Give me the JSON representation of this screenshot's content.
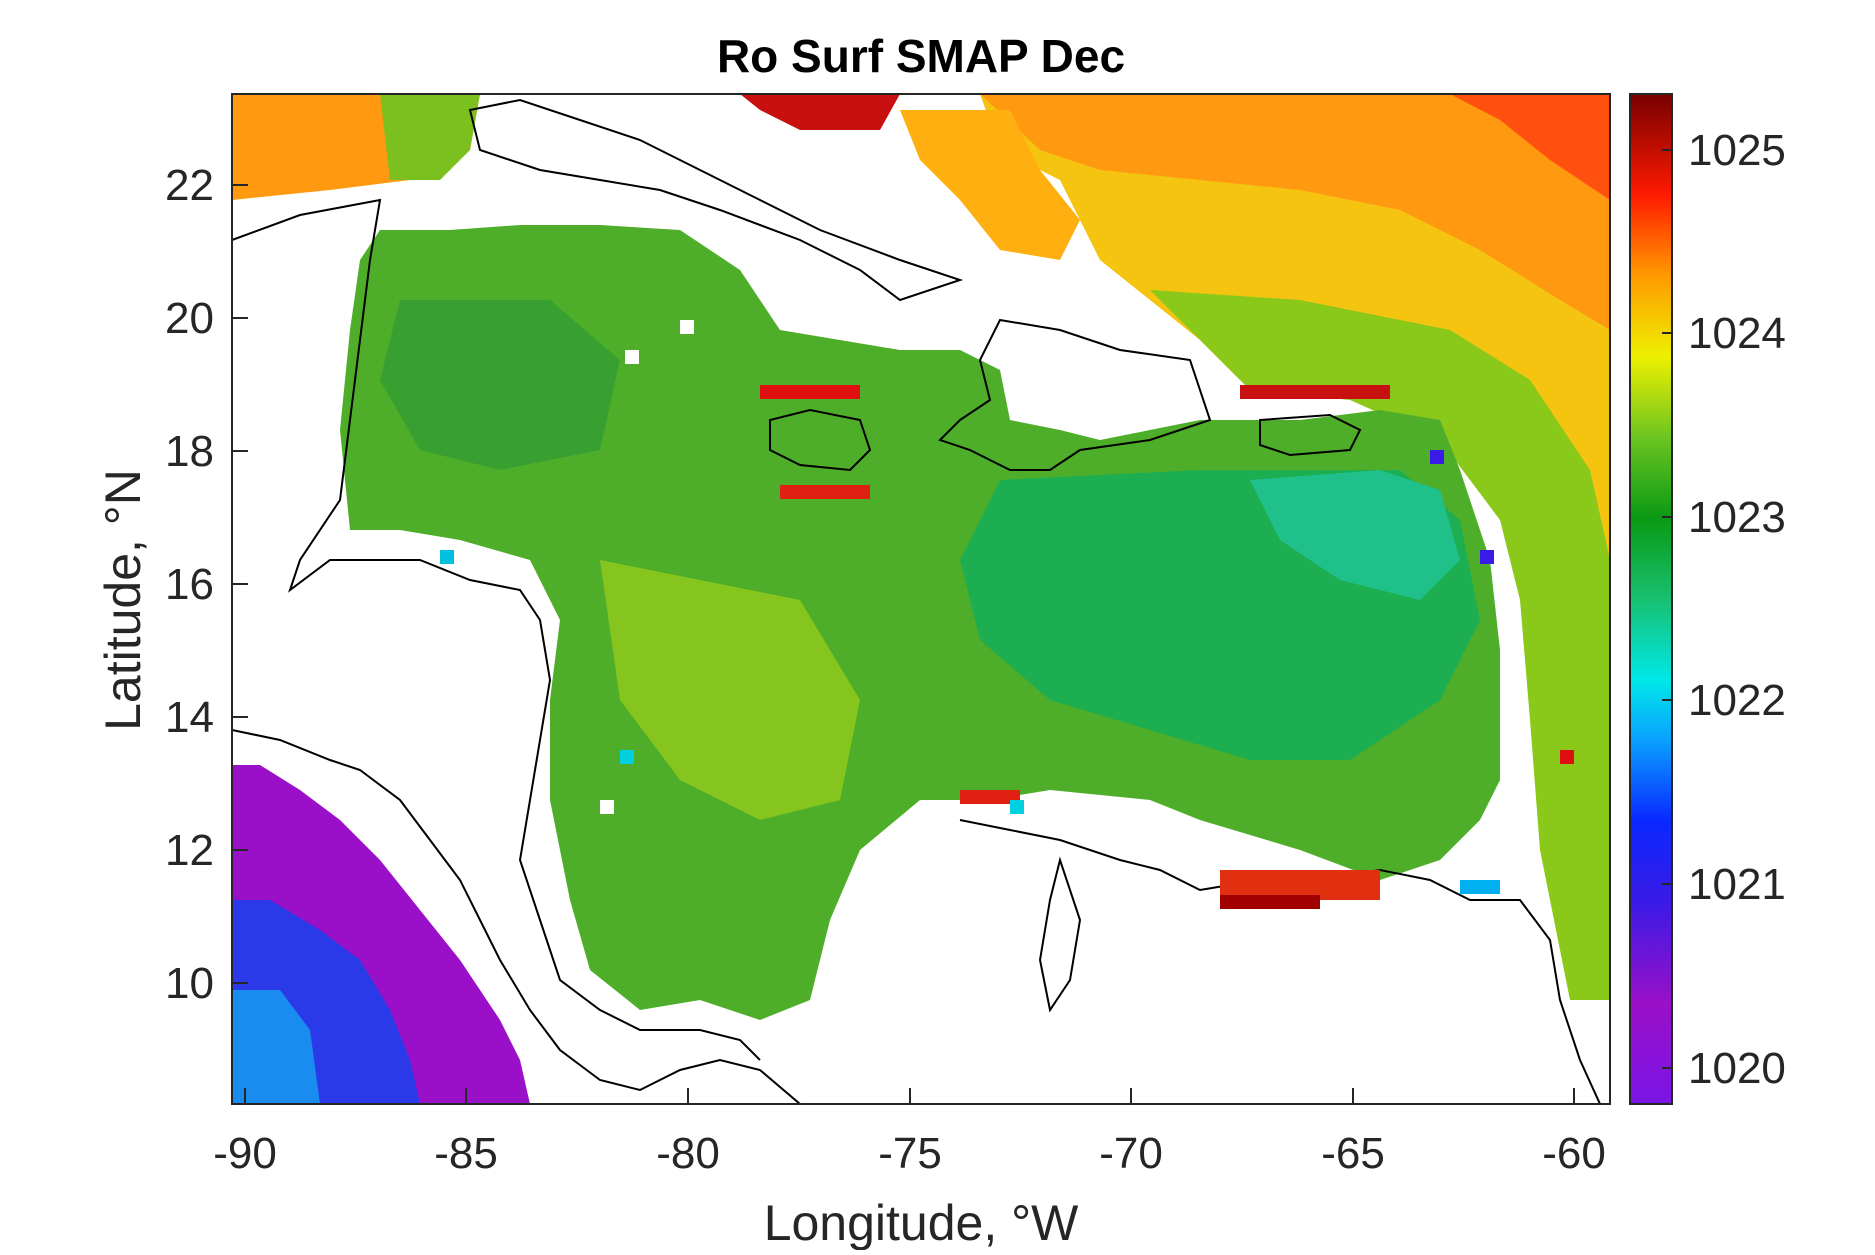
{
  "title": "Ro Surf SMAP Dec",
  "x_axis": {
    "label": "Longitude, °W",
    "ticks": [
      "-90",
      "-85",
      "-80",
      "-75",
      "-70",
      "-65",
      "-60"
    ]
  },
  "y_axis": {
    "label": "Latitude, °N",
    "ticks": [
      "10",
      "12",
      "14",
      "16",
      "18",
      "20",
      "22"
    ]
  },
  "colorbar": {
    "ticks": [
      "1020",
      "1021",
      "1022",
      "1023",
      "1024",
      "1025"
    ],
    "colormap": "jet-like (purple → blue → cyan → green → yellow → red → dark red)"
  },
  "chart_data": {
    "type": "heatmap",
    "title": "Ro Surf SMAP Dec",
    "xlabel": "Longitude, °W",
    "ylabel": "Latitude, °N",
    "xlim": [
      -90.2,
      -59.2
    ],
    "ylim": [
      8.2,
      23.4
    ],
    "x_ticks": [
      -90,
      -85,
      -80,
      -75,
      -70,
      -65,
      -60
    ],
    "y_ticks": [
      10,
      12,
      14,
      16,
      18,
      20,
      22
    ],
    "color_range": [
      1019.8,
      1025.3
    ],
    "colorbar_ticks": [
      1020,
      1021,
      1022,
      1023,
      1024,
      1025
    ],
    "description_regions": [
      {
        "region": "Atlantic north of Greater Antilles",
        "value_approx": 1024.3
      },
      {
        "region": "Gulf of Mexico strip (north-west)",
        "value_approx": 1024.2
      },
      {
        "region": "Central Caribbean Sea",
        "value_approx": 1023.0
      },
      {
        "region": "Eastern Caribbean basin",
        "value_approx": 1022.8
      },
      {
        "region": "Eastern Pacific off Central America",
        "value_approx": 1020.5
      }
    ]
  }
}
